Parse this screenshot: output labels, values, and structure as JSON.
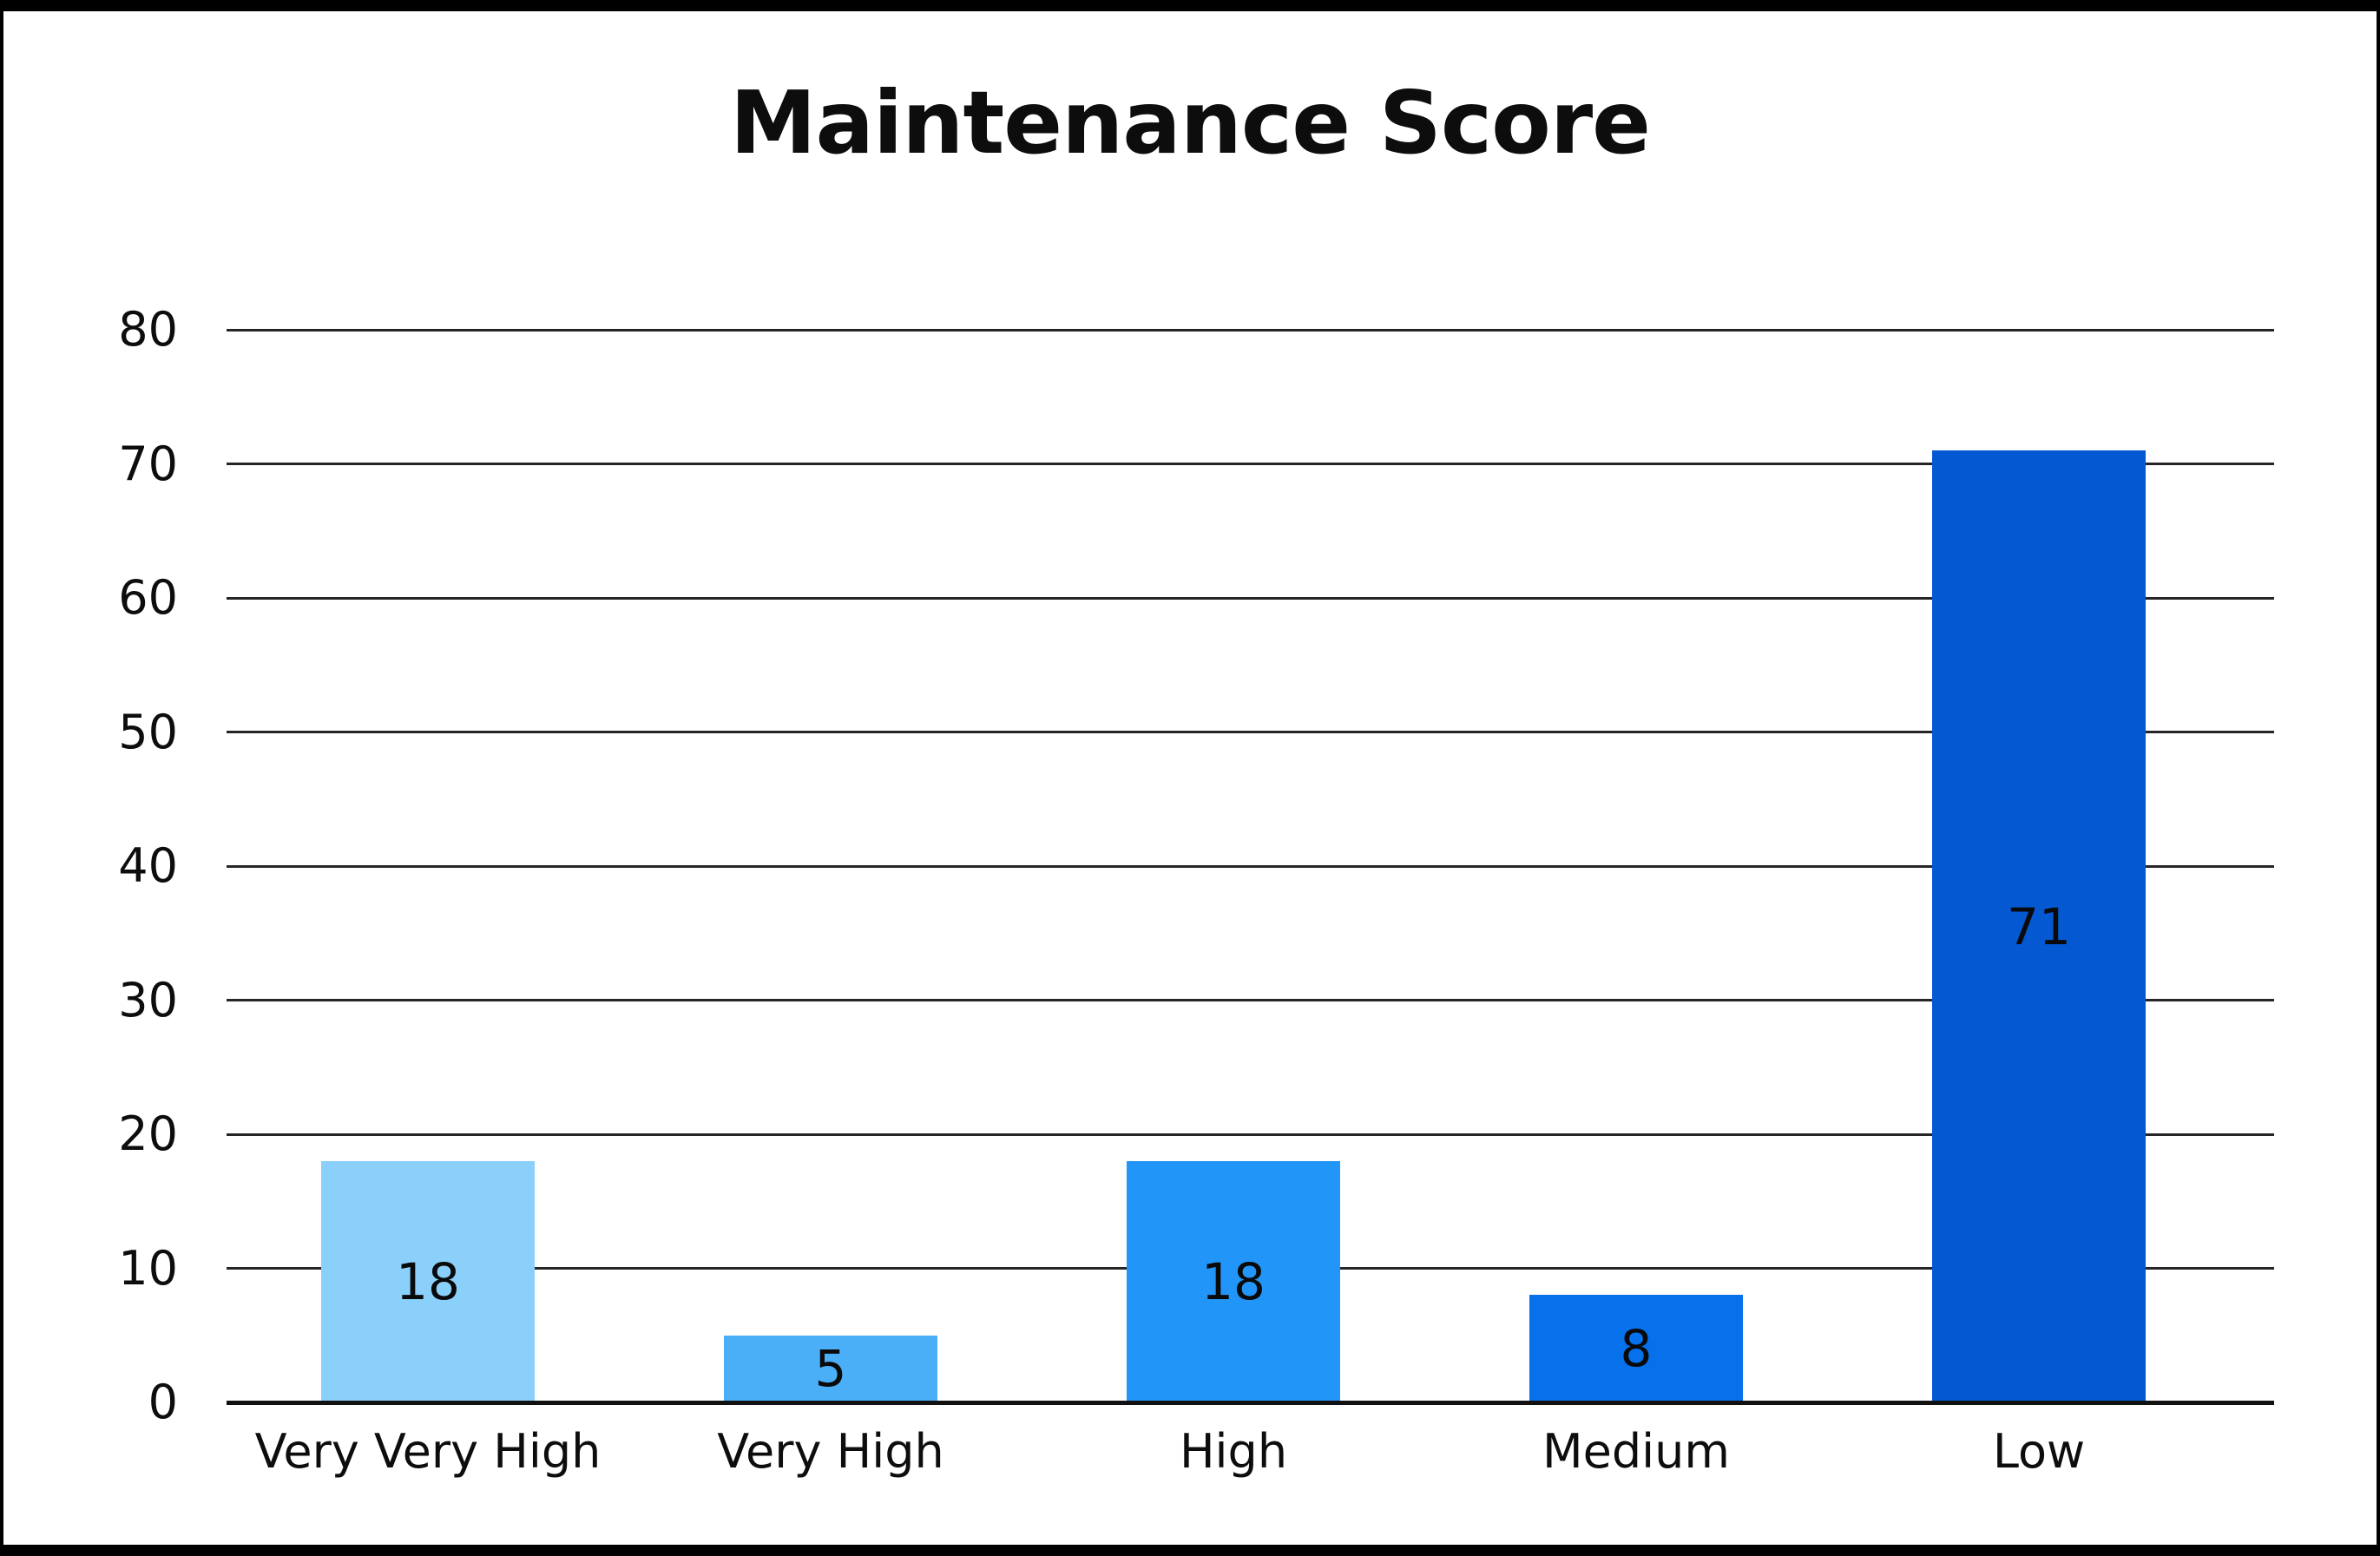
{
  "chart_data": {
    "type": "bar",
    "title": "Maintenance Score",
    "categories": [
      "Very Very High",
      "Very High",
      "High",
      "Medium",
      "Low"
    ],
    "values": [
      18,
      5,
      18,
      8,
      71
    ],
    "value_labels": [
      "18",
      "5",
      "18",
      "8",
      "71"
    ],
    "series": [
      {
        "name": "Maintenance Score",
        "values": [
          18,
          5,
          18,
          8,
          71
        ]
      }
    ],
    "bar_colors": [
      "#8AD0FB",
      "#4BAFF7",
      "#2196F8",
      "#0770EB",
      "#0458D1"
    ],
    "xlabel": "",
    "ylabel": "",
    "ylim": [
      0,
      80
    ],
    "ytick_step": 10,
    "ytick_labels": [
      "0",
      "10",
      "20",
      "30",
      "40",
      "50",
      "60",
      "70",
      "80"
    ],
    "grid": "horizontal",
    "legend": "none",
    "value_labels_position": "center-inside-bar",
    "colors": {
      "text": "#0D0D0D",
      "gridline": "#262626",
      "axis_line": "#111111",
      "plot_background": "#FFFFFF",
      "frame": "#000000"
    }
  }
}
